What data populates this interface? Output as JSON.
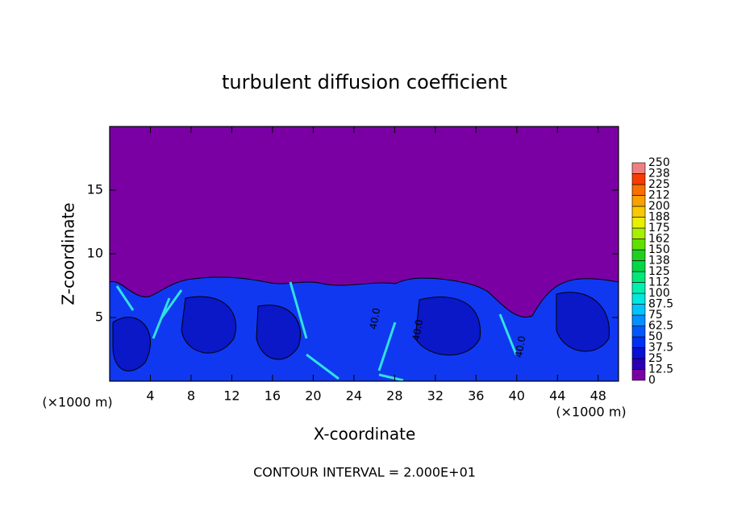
{
  "chart_data": {
    "type": "contour",
    "title": "turbulent diffusion coefficient",
    "xlabel": "X-coordinate",
    "ylabel": "Z-coordinate",
    "x_unit": "(×1000 m)",
    "y_unit": "(×1000 m)",
    "footer": "CONTOUR INTERVAL = 2.000E+01",
    "xlim": [
      0,
      50
    ],
    "ylim": [
      0,
      20
    ],
    "xticks": [
      4,
      8,
      12,
      16,
      20,
      24,
      28,
      32,
      36,
      40,
      44,
      48
    ],
    "yticks": [
      5,
      10,
      15
    ],
    "levels": [
      0,
      12.5,
      25,
      37.5,
      50,
      62.5,
      75,
      87.5,
      100,
      112,
      125,
      138,
      150,
      162,
      175,
      188,
      200,
      212,
      225,
      238,
      250
    ],
    "colors": [
      "#7a00a4",
      "#2a00b4",
      "#0a10d4",
      "#0030f0",
      "#0058ff",
      "#0090ff",
      "#00c4ff",
      "#00e8e0",
      "#00f0b0",
      "#00e878",
      "#00d848",
      "#20d020",
      "#60e000",
      "#a8f000",
      "#e8f000",
      "#f8c800",
      "#f8a000",
      "#f87000",
      "#f83c00",
      "#f08080"
    ],
    "annotations": [
      {
        "text": "40.0",
        "x": 26.1,
        "y": 4.9
      },
      {
        "text": "40.0",
        "x": 30.3,
        "y": 4.0
      },
      {
        "text": "40.0",
        "x": 40.4,
        "y": 2.7
      }
    ]
  }
}
